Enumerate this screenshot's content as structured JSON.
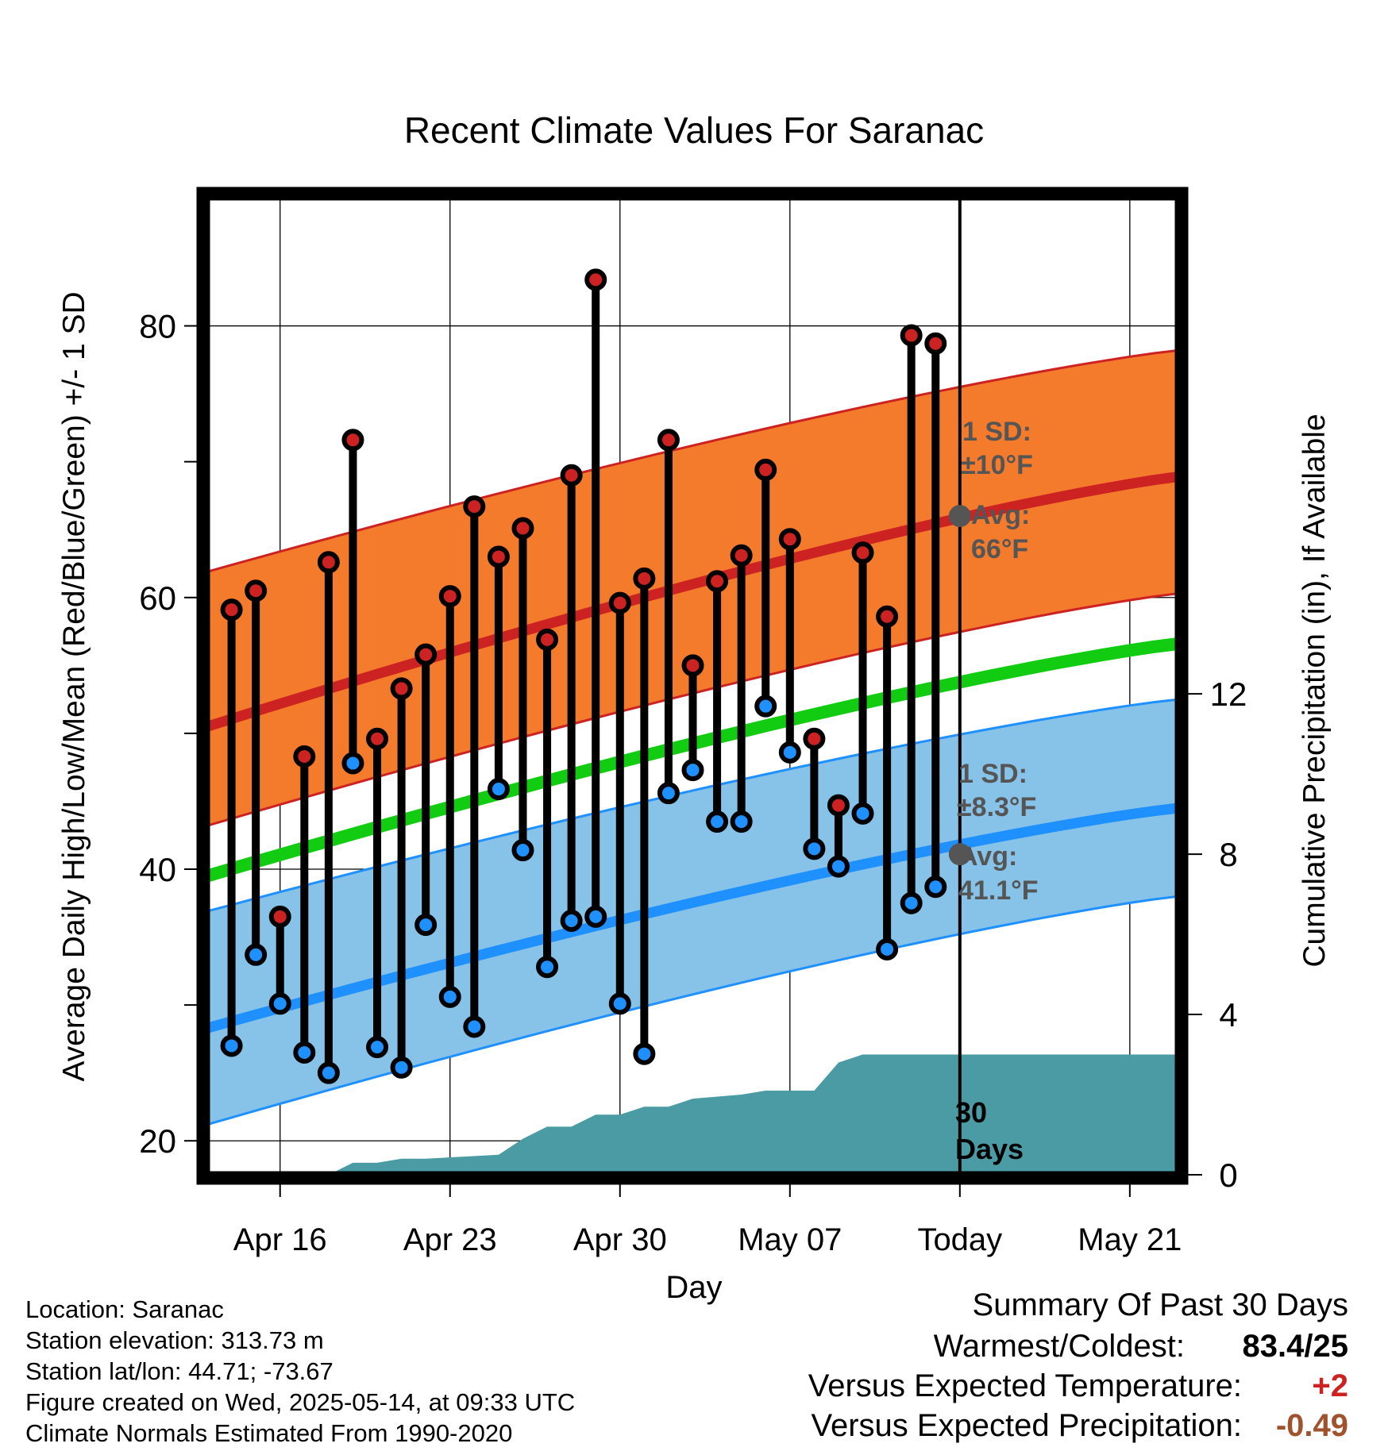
{
  "chart_data": {
    "type": "line",
    "title": "Recent Climate Values For Saranac",
    "xlabel": "Day",
    "ylabel": "Average Daily High/Low/Mean (Red/Blue/Green) +/- 1 SD",
    "y2label": "Cumulative Precipitation (in), If Available",
    "ylim": [
      17.5,
      89.5
    ],
    "y2lim": [
      0,
      24.4
    ],
    "yticks": [
      20,
      40,
      60,
      80
    ],
    "y2ticks": [
      0,
      4,
      8,
      12
    ],
    "x_tick_labels": [
      "Apr 16",
      "Apr 23",
      "Apr 30",
      "May 07",
      "Today",
      "May 21"
    ],
    "x_tick_dates": [
      "2025-04-16",
      "2025-04-23",
      "2025-04-30",
      "2025-05-07",
      "2025-05-14",
      "2025-05-21"
    ],
    "xlim": [
      "2025-04-13",
      "2025-05-23"
    ],
    "today": "2025-05-14",
    "grid": true,
    "daily_dates": [
      "2025-04-14",
      "2025-04-15",
      "2025-04-16",
      "2025-04-17",
      "2025-04-18",
      "2025-04-19",
      "2025-04-20",
      "2025-04-21",
      "2025-04-22",
      "2025-04-23",
      "2025-04-24",
      "2025-04-25",
      "2025-04-26",
      "2025-04-27",
      "2025-04-28",
      "2025-04-29",
      "2025-04-30",
      "2025-05-01",
      "2025-05-02",
      "2025-05-03",
      "2025-05-04",
      "2025-05-05",
      "2025-05-06",
      "2025-05-07",
      "2025-05-08",
      "2025-05-09",
      "2025-05-10",
      "2025-05-11",
      "2025-05-12",
      "2025-05-13"
    ],
    "series": [
      {
        "name": "High",
        "color": "#cc2222",
        "values": [
          59.1,
          60.5,
          36.5,
          48.3,
          62.6,
          71.6,
          49.6,
          53.3,
          55.8,
          60.1,
          66.7,
          63.0,
          65.1,
          56.9,
          69.0,
          83.4,
          59.6,
          61.4,
          71.6,
          55.0,
          61.2,
          63.1,
          69.4,
          64.3,
          49.6,
          44.7,
          63.3,
          58.6,
          79.3,
          78.7
        ]
      },
      {
        "name": "Low",
        "color": "#1e90ff",
        "values": [
          27.0,
          33.7,
          30.1,
          26.5,
          25.0,
          47.8,
          26.9,
          25.4,
          35.9,
          30.6,
          28.4,
          45.9,
          41.4,
          32.8,
          36.2,
          36.5,
          30.1,
          26.4,
          45.6,
          47.3,
          43.5,
          43.5,
          52.0,
          48.6,
          41.5,
          40.2,
          44.1,
          34.1,
          37.5,
          38.7
        ]
      }
    ],
    "normals": {
      "dates": [
        "2025-04-13",
        "2025-05-23"
      ],
      "high_mean": [
        50.5,
        68.9
      ],
      "high_upper": [
        61.9,
        78.2
      ],
      "high_lower": [
        43.2,
        60.3
      ],
      "low_mean": [
        28.3,
        44.5
      ],
      "low_upper": [
        36.9,
        52.5
      ],
      "low_lower": [
        21.2,
        38.0
      ],
      "mean": [
        39.5,
        56.6
      ]
    },
    "precipitation": {
      "dates": [
        "2025-04-13",
        "2025-04-18",
        "2025-04-19",
        "2025-04-20",
        "2025-04-21",
        "2025-04-22",
        "2025-04-25",
        "2025-04-26",
        "2025-04-27",
        "2025-04-28",
        "2025-04-29",
        "2025-04-30",
        "2025-05-01",
        "2025-05-02",
        "2025-05-03",
        "2025-05-05",
        "2025-05-06",
        "2025-05-08",
        "2025-05-09",
        "2025-05-10",
        "2025-05-11",
        "2025-05-23"
      ],
      "values": [
        0,
        0,
        0.3,
        0.3,
        0.4,
        0.4,
        0.5,
        0.9,
        1.2,
        1.2,
        1.5,
        1.5,
        1.7,
        1.7,
        1.9,
        2.0,
        2.1,
        2.1,
        2.8,
        3.0,
        3.0,
        3.0
      ]
    },
    "annotations": {
      "high_sd_label": "1 SD:",
      "high_sd_value": "±10°F",
      "high_avg_label": "Avg:",
      "high_avg_value": "66°F",
      "low_sd_label": "1 SD:",
      "low_sd_value": "±8.3°F",
      "low_avg_label": "Avg:",
      "low_avg_value": "41.1°F",
      "today_avg_high": 66,
      "today_avg_low": 41.1,
      "days_number": "30",
      "days_label": "Days"
    },
    "colors": {
      "high_band": "#f47b2c",
      "high_line": "#cc2222",
      "low_band": "#87c2e8",
      "low_line": "#1e90ff",
      "mean_line": "#11cc11",
      "precip": "#4a9ba3",
      "annotation": "#555555"
    }
  },
  "metadata": {
    "location": "Location: Saranac",
    "elevation": "Station elevation: 313.73 m",
    "latlon": "Station lat/lon: 44.71; -73.67",
    "created": "Figure created on Wed, 2025-05-14, at 09:33 UTC",
    "normals": "Climate Normals Estimated From 1990-2020"
  },
  "summary": {
    "title": "Summary Of Past 30 Days",
    "warmest_label": "Warmest/Coldest:",
    "warmest_value": "83.4/25",
    "temp_label": "Versus Expected Temperature:",
    "temp_value": "+2",
    "temp_color": "#cc2222",
    "precip_label": "Versus Expected Precipitation:",
    "precip_value": "-0.49",
    "precip_color": "#a0522d"
  }
}
